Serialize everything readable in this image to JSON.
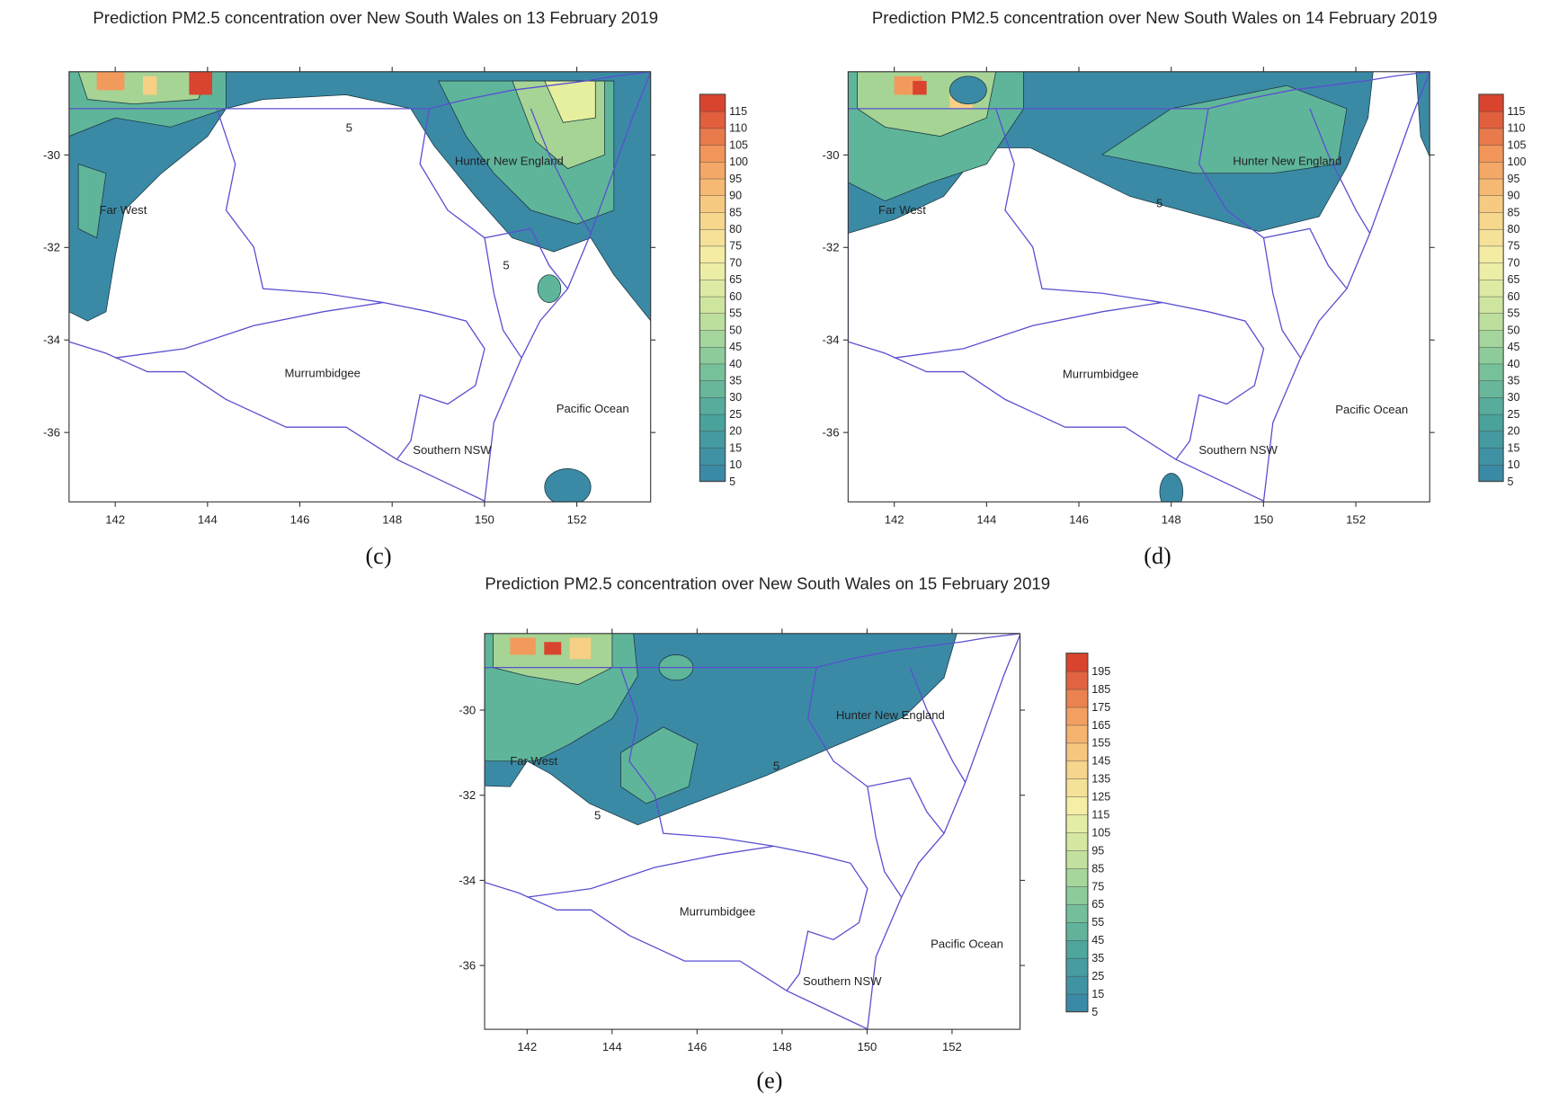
{
  "maps": [
    {
      "title": "Prediction PM2.5 concentration over New South Wales on 13 February 2019",
      "label": "(c)",
      "xlim": [
        141,
        153.6
      ],
      "ylim": [
        -37.5,
        -28.2
      ],
      "xticks": [
        142,
        144,
        146,
        148,
        150,
        152
      ],
      "yticks": [
        -30,
        -32,
        -34,
        -36
      ],
      "colorbar_levels": [
        5,
        10,
        15,
        20,
        25,
        30,
        35,
        40,
        45,
        50,
        55,
        60,
        65,
        70,
        75,
        80,
        85,
        90,
        95,
        100,
        105,
        110,
        115
      ],
      "regions": [
        "Far West",
        "Hunter New England",
        "Murrumbidgee",
        "Southern NSW",
        "Pacific Ocean"
      ],
      "contour_labels": [
        5,
        5
      ]
    },
    {
      "title": "Prediction PM2.5 concentration over New South Wales on 14 February 2019",
      "label": "(d)",
      "xlim": [
        141,
        153.6
      ],
      "ylim": [
        -37.5,
        -28.2
      ],
      "xticks": [
        142,
        144,
        146,
        148,
        150,
        152
      ],
      "yticks": [
        -30,
        -32,
        -34,
        -36
      ],
      "colorbar_levels": [
        5,
        10,
        15,
        20,
        25,
        30,
        35,
        40,
        45,
        50,
        55,
        60,
        65,
        70,
        75,
        80,
        85,
        90,
        95,
        100,
        105,
        110,
        115
      ],
      "regions": [
        "Far West",
        "Hunter New England",
        "Murrumbidgee",
        "Southern NSW",
        "Pacific Ocean"
      ],
      "contour_labels": [
        5
      ]
    },
    {
      "title": "Prediction PM2.5 concentration over New South Wales on 15 February 2019",
      "label": "(e)",
      "xlim": [
        141,
        153.6
      ],
      "ylim": [
        -37.5,
        -28.2
      ],
      "xticks": [
        142,
        144,
        146,
        148,
        150,
        152
      ],
      "yticks": [
        -30,
        -32,
        -34,
        -36
      ],
      "colorbar_levels": [
        5,
        15,
        25,
        35,
        45,
        55,
        65,
        75,
        85,
        95,
        105,
        115,
        125,
        135,
        145,
        155,
        165,
        175,
        185,
        195
      ],
      "regions": [
        "Far West",
        "Hunter New England",
        "Murrumbidgee",
        "Southern NSW",
        "Pacific Ocean"
      ],
      "contour_labels": [
        5,
        5
      ]
    }
  ],
  "colorscale": [
    "#3a8aa6",
    "#4aa39c",
    "#7cc49a",
    "#c6e39e",
    "#f4f0a8",
    "#f7cf85",
    "#f2995c",
    "#d9442e"
  ]
}
